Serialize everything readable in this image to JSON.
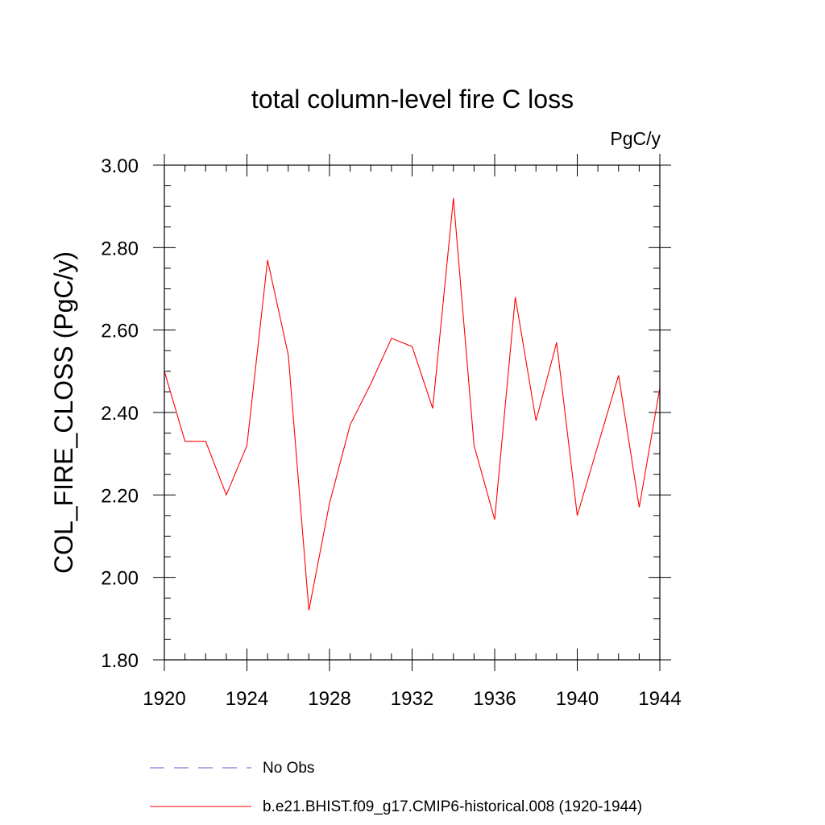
{
  "chart_data": {
    "type": "line",
    "title": "total column-level fire C loss",
    "units_label": "PgC/y",
    "xlabel": "",
    "ylabel": "COL_FIRE_CLOSS  (PgC/y)",
    "xlim": [
      1920,
      1944
    ],
    "ylim": [
      1.8,
      3.0
    ],
    "x_ticks": [
      1920,
      1924,
      1928,
      1932,
      1936,
      1940,
      1944
    ],
    "x_tick_labels": [
      "1920",
      "1924",
      "1928",
      "1932",
      "1936",
      "1940",
      "1944"
    ],
    "y_ticks": [
      1.8,
      2.0,
      2.2,
      2.4,
      2.6,
      2.8,
      3.0
    ],
    "y_tick_labels": [
      "1.80",
      "2.00",
      "2.20",
      "2.40",
      "2.60",
      "2.80",
      "3.00"
    ],
    "series": [
      {
        "name": "b.e21.BHIST.f09_g17.CMIP6-historical.008 (1920-1944)",
        "color": "#ff0000",
        "x": [
          1920,
          1921,
          1922,
          1923,
          1924,
          1925,
          1926,
          1927,
          1928,
          1929,
          1930,
          1931,
          1932,
          1933,
          1934,
          1935,
          1936,
          1937,
          1938,
          1939,
          1940,
          1941,
          1942,
          1943,
          1944
        ],
        "y": [
          2.5,
          2.33,
          2.33,
          2.2,
          2.32,
          2.77,
          2.54,
          1.92,
          2.18,
          2.37,
          2.47,
          2.58,
          2.56,
          2.41,
          2.92,
          2.32,
          2.14,
          2.68,
          2.38,
          2.57,
          2.15,
          2.32,
          2.49,
          2.17,
          2.46
        ]
      }
    ],
    "legend": [
      {
        "label": "No Obs",
        "style": "dashed",
        "color": "#6a5acd"
      },
      {
        "label": "b.e21.BHIST.f09_g17.CMIP6-historical.008 (1920-1944)",
        "style": "solid",
        "color": "#ff0000"
      }
    ]
  }
}
